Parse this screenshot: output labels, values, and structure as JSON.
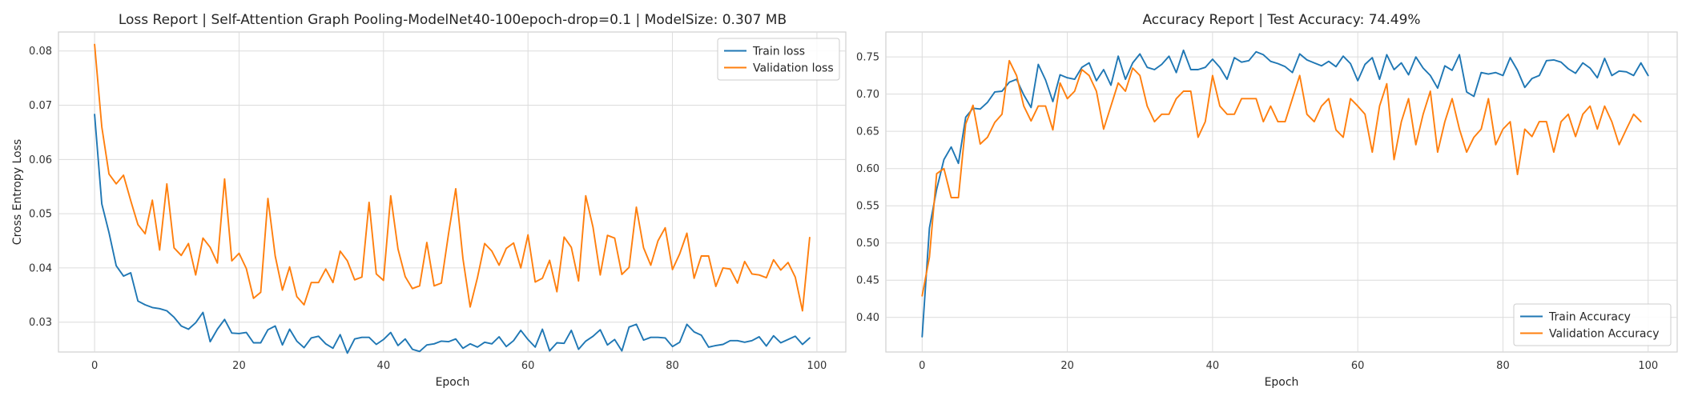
{
  "chart_data": [
    {
      "type": "line",
      "title": "Loss Report | Self-Attention Graph Pooling-ModelNet40-100epoch-drop=0.1 | ModelSize: 0.307 MB",
      "xlabel": "Epoch",
      "ylabel": "Cross Entropy Loss",
      "xlim": [
        -5,
        104
      ],
      "ylim": [
        0.0245,
        0.0835
      ],
      "xticks": [
        0,
        20,
        40,
        60,
        80,
        100
      ],
      "yticks": [
        0.03,
        0.04,
        0.05,
        0.06,
        0.07,
        0.08
      ],
      "ytick_format": "fixed2",
      "grid": true,
      "legend_position": "top-right",
      "series": [
        {
          "name": "Train loss",
          "color": "#1f77b4",
          "values": [
            0.0683,
            0.0518,
            0.0465,
            0.0404,
            0.0385,
            0.0391,
            0.0339,
            0.0332,
            0.0327,
            0.0325,
            0.0321,
            0.0309,
            0.0293,
            0.0287,
            0.0299,
            0.0318,
            0.0264,
            0.0287,
            0.0305,
            0.028,
            0.0279,
            0.0281,
            0.0262,
            0.0262,
            0.0286,
            0.0293,
            0.0258,
            0.0287,
            0.0265,
            0.0253,
            0.0271,
            0.0274,
            0.026,
            0.0252,
            0.0277,
            0.0243,
            0.0269,
            0.0272,
            0.0272,
            0.0259,
            0.0268,
            0.0281,
            0.0257,
            0.0269,
            0.025,
            0.0246,
            0.0258,
            0.026,
            0.0265,
            0.0264,
            0.0269,
            0.0252,
            0.026,
            0.0254,
            0.0263,
            0.026,
            0.0273,
            0.0255,
            0.0266,
            0.0285,
            0.0268,
            0.0254,
            0.0287,
            0.0247,
            0.0262,
            0.0261,
            0.0285,
            0.025,
            0.0265,
            0.0274,
            0.0286,
            0.0258,
            0.0268,
            0.0247,
            0.0291,
            0.0296,
            0.0267,
            0.0272,
            0.0272,
            0.0271,
            0.0255,
            0.0263,
            0.0296,
            0.0282,
            0.0276,
            0.0254,
            0.0257,
            0.0259,
            0.0266,
            0.0266,
            0.0263,
            0.0266,
            0.0273,
            0.0256,
            0.0275,
            0.0262,
            0.0268,
            0.0274,
            0.0259,
            0.0271
          ]
        },
        {
          "name": "Validation loss",
          "color": "#ff7f0e",
          "values": [
            0.0812,
            0.066,
            0.0573,
            0.0555,
            0.0571,
            0.0524,
            0.048,
            0.0463,
            0.0525,
            0.0433,
            0.0555,
            0.0437,
            0.0423,
            0.0445,
            0.0387,
            0.0455,
            0.0438,
            0.0409,
            0.0564,
            0.0413,
            0.0427,
            0.0399,
            0.0344,
            0.0355,
            0.0528,
            0.0422,
            0.0359,
            0.0402,
            0.0347,
            0.0332,
            0.0373,
            0.0373,
            0.0398,
            0.0373,
            0.0431,
            0.0413,
            0.0378,
            0.0383,
            0.0521,
            0.0389,
            0.0377,
            0.0533,
            0.0435,
            0.0384,
            0.0362,
            0.0367,
            0.0447,
            0.0367,
            0.0372,
            0.0463,
            0.0546,
            0.0417,
            0.0328,
            0.0382,
            0.0445,
            0.0431,
            0.0405,
            0.0436,
            0.0446,
            0.04,
            0.0461,
            0.0374,
            0.0381,
            0.0414,
            0.0356,
            0.0457,
            0.0438,
            0.0376,
            0.0533,
            0.0475,
            0.0387,
            0.046,
            0.0455,
            0.0388,
            0.0401,
            0.0512,
            0.0437,
            0.0405,
            0.045,
            0.0474,
            0.0397,
            0.0426,
            0.0464,
            0.0381,
            0.0422,
            0.0422,
            0.0366,
            0.04,
            0.0398,
            0.0372,
            0.0412,
            0.0389,
            0.0387,
            0.0382,
            0.0415,
            0.0396,
            0.041,
            0.0383,
            0.0321,
            0.0456
          ]
        }
      ]
    },
    {
      "type": "line",
      "title": "Accuracy Report | Test Accuracy: 74.49%",
      "xlabel": "Epoch",
      "ylabel": "",
      "xlim": [
        -5,
        104
      ],
      "ylim": [
        0.3535,
        0.7835
      ],
      "xticks": [
        0,
        20,
        40,
        60,
        80,
        100
      ],
      "yticks": [
        0.4,
        0.45,
        0.5,
        0.55,
        0.6,
        0.65,
        0.7,
        0.75
      ],
      "ytick_format": "fixed2",
      "grid": true,
      "legend_position": "bottom-right",
      "series": [
        {
          "name": "Train Accuracy",
          "color": "#1f77b4",
          "values": [
            0.374,
            0.52,
            0.572,
            0.612,
            0.629,
            0.607,
            0.669,
            0.681,
            0.68,
            0.689,
            0.703,
            0.704,
            0.716,
            0.72,
            0.699,
            0.682,
            0.74,
            0.719,
            0.69,
            0.726,
            0.722,
            0.72,
            0.736,
            0.742,
            0.718,
            0.733,
            0.712,
            0.751,
            0.72,
            0.742,
            0.754,
            0.736,
            0.733,
            0.74,
            0.751,
            0.729,
            0.759,
            0.733,
            0.733,
            0.736,
            0.747,
            0.736,
            0.72,
            0.749,
            0.743,
            0.745,
            0.757,
            0.753,
            0.744,
            0.741,
            0.737,
            0.729,
            0.754,
            0.746,
            0.742,
            0.738,
            0.744,
            0.737,
            0.751,
            0.741,
            0.718,
            0.74,
            0.749,
            0.72,
            0.753,
            0.733,
            0.742,
            0.726,
            0.75,
            0.735,
            0.725,
            0.708,
            0.738,
            0.732,
            0.753,
            0.703,
            0.697,
            0.729,
            0.727,
            0.729,
            0.725,
            0.749,
            0.732,
            0.709,
            0.721,
            0.725,
            0.745,
            0.746,
            0.743,
            0.734,
            0.728,
            0.742,
            0.735,
            0.722,
            0.748,
            0.725,
            0.731,
            0.73,
            0.725,
            0.742,
            0.725
          ]
        },
        {
          "name": "Validation Accuracy",
          "color": "#ff7f0e",
          "values": [
            0.429,
            0.481,
            0.593,
            0.6,
            0.561,
            0.561,
            0.66,
            0.685,
            0.633,
            0.642,
            0.662,
            0.673,
            0.745,
            0.725,
            0.684,
            0.664,
            0.684,
            0.684,
            0.652,
            0.715,
            0.694,
            0.704,
            0.733,
            0.725,
            0.704,
            0.653,
            0.684,
            0.715,
            0.704,
            0.735,
            0.725,
            0.684,
            0.663,
            0.673,
            0.673,
            0.694,
            0.704,
            0.704,
            0.642,
            0.663,
            0.725,
            0.684,
            0.673,
            0.673,
            0.694,
            0.694,
            0.694,
            0.663,
            0.684,
            0.663,
            0.663,
            0.694,
            0.725,
            0.673,
            0.663,
            0.684,
            0.694,
            0.652,
            0.642,
            0.694,
            0.684,
            0.673,
            0.622,
            0.684,
            0.714,
            0.612,
            0.663,
            0.694,
            0.632,
            0.673,
            0.704,
            0.622,
            0.663,
            0.694,
            0.653,
            0.622,
            0.642,
            0.653,
            0.694,
            0.632,
            0.653,
            0.663,
            0.592,
            0.653,
            0.643,
            0.663,
            0.663,
            0.622,
            0.663,
            0.673,
            0.643,
            0.673,
            0.684,
            0.653,
            0.684,
            0.663,
            0.632,
            0.653,
            0.673,
            0.663
          ]
        }
      ]
    }
  ]
}
